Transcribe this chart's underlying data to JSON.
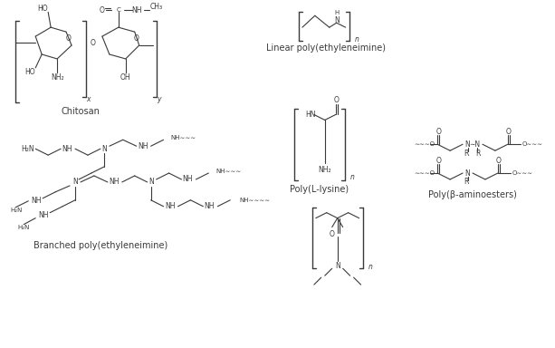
{
  "background_color": "#ffffff",
  "line_color": "#3a3a3a",
  "text_color": "#3a3a3a",
  "labels": {
    "chitosan": "Chitosan",
    "branched_pei": "Branched poly(ethyleneimine)",
    "linear_pei": "Linear poly(ethyleneimine)",
    "poly_lysine": "Poly(L-lysine)",
    "poly_beta": "Poly(β-aminoesters)"
  },
  "figsize": [
    6.13,
    3.84
  ],
  "dpi": 100
}
